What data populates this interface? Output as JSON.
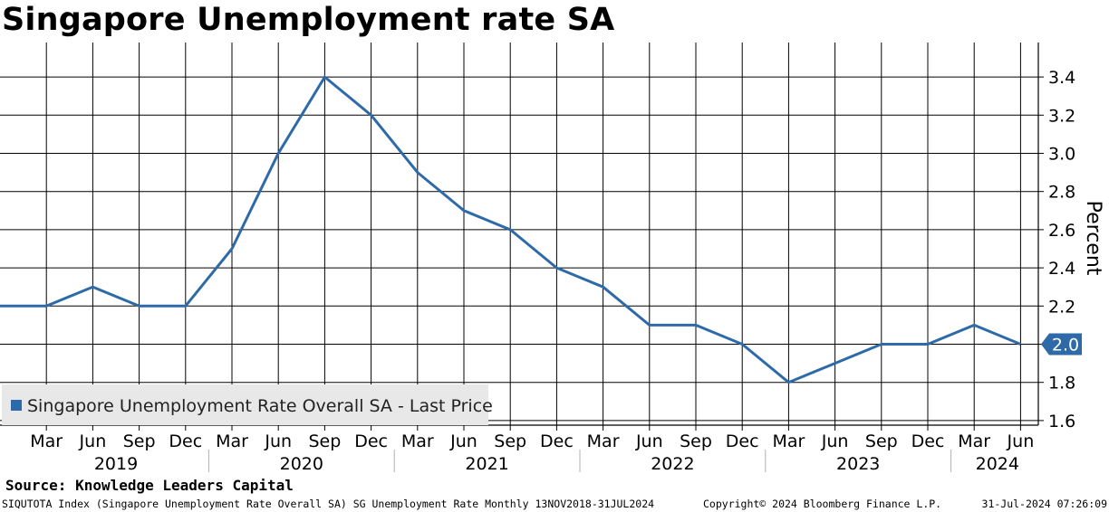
{
  "chart_data": {
    "type": "line",
    "title": "Singapore Unemployment rate SA",
    "ylabel": "Percent",
    "ylim": [
      1.55,
      3.55
    ],
    "y_ticks": [
      "1.6",
      "1.8",
      "2.0",
      "2.2",
      "2.4",
      "2.6",
      "2.8",
      "3.0",
      "3.2",
      "3.4"
    ],
    "x_tick_labels": [
      "Mar",
      "Jun",
      "Sep",
      "Dec",
      "Mar",
      "Jun",
      "Sep",
      "Dec",
      "Mar",
      "Jun",
      "Sep",
      "Dec",
      "Mar",
      "Jun",
      "Sep",
      "Dec",
      "Mar",
      "Jun",
      "Sep",
      "Dec",
      "Mar",
      "Jun"
    ],
    "year_labels": [
      "2019",
      "2020",
      "2021",
      "2022",
      "2023",
      "2024"
    ],
    "grid": true,
    "legend_position": "bottom-left",
    "series": [
      {
        "name": "Singapore Unemployment Rate Overall SA - Last Price",
        "color": "#2e6aa8",
        "x": [
          "Dec 2018",
          "Mar 2019",
          "Jun 2019",
          "Sep 2019",
          "Dec 2019",
          "Mar 2020",
          "Jun 2020",
          "Sep 2020",
          "Dec 2020",
          "Mar 2021",
          "Jun 2021",
          "Sep 2021",
          "Dec 2021",
          "Mar 2022",
          "Jun 2022",
          "Sep 2022",
          "Dec 2022",
          "Mar 2023",
          "Jun 2023",
          "Sep 2023",
          "Dec 2023",
          "Mar 2024",
          "Jun 2024"
        ],
        "values": [
          2.2,
          2.2,
          2.3,
          2.2,
          2.2,
          2.5,
          3.0,
          3.4,
          3.2,
          2.9,
          2.7,
          2.6,
          2.4,
          2.3,
          2.1,
          2.1,
          2.0,
          1.8,
          1.9,
          2.0,
          2.0,
          2.1,
          2.0
        ]
      }
    ],
    "last_value_label": "2.0"
  },
  "source": "Source: Knowledge Leaders Capital",
  "footer": {
    "left": "SIQUTOTA Index (Singapore Unemployment Rate Overall SA) SG Unemployment Rate  Monthly 13NOV2018-31JUL2024",
    "middle": "Copyright© 2024 Bloomberg Finance L.P.",
    "right": "31-Jul-2024 07:26:09"
  }
}
